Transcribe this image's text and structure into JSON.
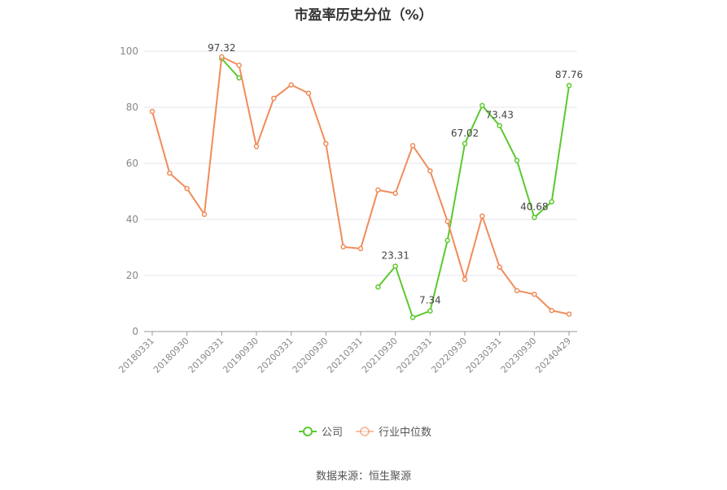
{
  "chart_data": {
    "type": "line",
    "title": "市盈率历史分位（%）",
    "source": "数据来源：恒生聚源",
    "ylim": [
      0,
      100
    ],
    "yticks": [
      0,
      20,
      40,
      60,
      80,
      100
    ],
    "grid": true,
    "legend_position": "bottom",
    "x": [
      "20180331",
      "20180630",
      "20180930",
      "20181231",
      "20190331",
      "20190630",
      "20190930",
      "20191231",
      "20200331",
      "20200630",
      "20200930",
      "20201231",
      "20210331",
      "20210630",
      "20210930",
      "20211231",
      "20220331",
      "20220630",
      "20220930",
      "20221231",
      "20230331",
      "20230630",
      "20230930",
      "20231231",
      "20240429"
    ],
    "xtick_labels": [
      "20180331",
      "20180930",
      "20190331",
      "20190930",
      "20200331",
      "20200930",
      "20210331",
      "20210930",
      "20220331",
      "20220930",
      "20230331",
      "20230930",
      "20240429"
    ],
    "xtick_indices": [
      0,
      2,
      4,
      6,
      8,
      10,
      12,
      14,
      16,
      18,
      20,
      22,
      24
    ],
    "series": [
      {
        "name": "公司",
        "color": "#5cc92e",
        "values": [
          null,
          null,
          null,
          null,
          97.32,
          90.5,
          null,
          null,
          null,
          null,
          null,
          null,
          null,
          15.9,
          23.31,
          5.0,
          7.34,
          32.5,
          67.02,
          80.6,
          73.43,
          61.0,
          40.68,
          46.3,
          87.76
        ],
        "labels": {
          "4": "97.32",
          "14": "23.31",
          "16": "7.34",
          "18": "67.02",
          "20": "73.43",
          "22": "40.68",
          "24": "87.76"
        }
      },
      {
        "name": "行业中位数",
        "color": "#f08c5a",
        "values": [
          78.5,
          56.5,
          51.0,
          41.8,
          98.0,
          95.0,
          66.0,
          83.2,
          88.0,
          85.0,
          67.0,
          30.2,
          29.6,
          50.5,
          49.3,
          66.3,
          57.3,
          39.3,
          18.6,
          41.2,
          23.0,
          14.6,
          13.3,
          7.5,
          6.2
        ],
        "labels": {}
      }
    ]
  }
}
